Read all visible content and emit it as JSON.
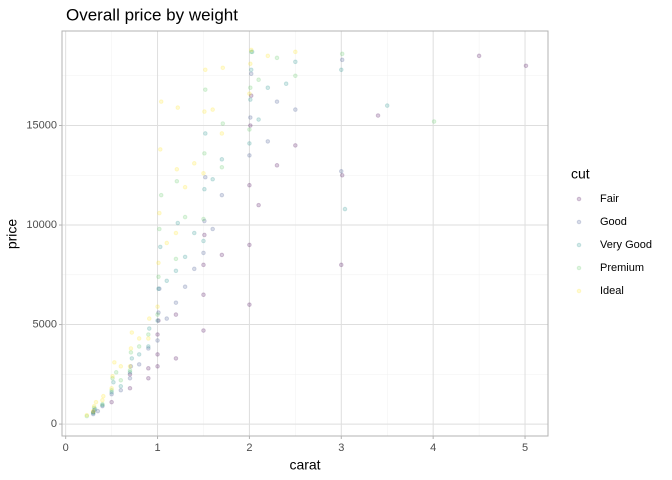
{
  "chart_data": {
    "type": "scatter",
    "title": "Overall price by weight",
    "x_label": "carat",
    "y_label": "price",
    "legend_title": "cut",
    "xlim": [
      -0.04,
      5.25
    ],
    "ylim": [
      -599,
      19748
    ],
    "xticks": [
      0,
      1,
      2,
      3,
      4,
      5
    ],
    "yticks": [
      0,
      5000,
      10000,
      15000
    ],
    "x_minor_ticks": [
      0.5,
      1.5,
      2.5,
      3.5,
      4.5
    ],
    "y_minor_ticks": [
      2500,
      7500,
      12500,
      17500
    ],
    "grid": true,
    "legend_position": "right",
    "point_opacity": 0.2,
    "series": [
      {
        "name": "Fair",
        "color": "#440154",
        "x": [
          0.3,
          0.5,
          0.7,
          0.9,
          1.0,
          1.0,
          1.01,
          1.2,
          1.5,
          1.5,
          1.51,
          1.7,
          2.0,
          2.0,
          2.01,
          2.02,
          2.1,
          2.3,
          2.5,
          3.0,
          3.01,
          3.4,
          4.5,
          5.01,
          0.7,
          1.0,
          1.5,
          2.0,
          1.2,
          0.9
        ],
        "values": [
          600,
          1100,
          1800,
          2300,
          3500,
          4500,
          5200,
          5500,
          6500,
          8000,
          9500,
          8500,
          9000,
          12000,
          15000,
          16500,
          11000,
          13000,
          14000,
          8000,
          12500,
          15500,
          18500,
          18000,
          2500,
          2900,
          4700,
          6000,
          3300,
          2800
        ]
      },
      {
        "name": "Good",
        "color": "#3B528B",
        "x": [
          0.3,
          0.31,
          0.4,
          0.5,
          0.7,
          0.71,
          0.9,
          1.0,
          1.01,
          1.02,
          1.1,
          1.2,
          1.5,
          1.51,
          1.52,
          1.7,
          2.0,
          2.01,
          2.02,
          2.2,
          2.5,
          3.0,
          3.01,
          0.6,
          0.8,
          1.3,
          1.4,
          1.6,
          2.3,
          0.35
        ],
        "values": [
          500,
          700,
          900,
          1500,
          2300,
          2900,
          3800,
          4200,
          5600,
          6800,
          5300,
          6100,
          8600,
          10200,
          12400,
          11500,
          13500,
          15400,
          17600,
          14200,
          15800,
          12700,
          18300,
          1700,
          3000,
          6900,
          7800,
          9800,
          16200,
          650
        ]
      },
      {
        "name": "Very Good",
        "color": "#21908C",
        "x": [
          0.3,
          0.32,
          0.4,
          0.5,
          0.52,
          0.7,
          0.72,
          0.9,
          0.91,
          1.0,
          1.01,
          1.03,
          1.1,
          1.2,
          1.22,
          1.5,
          1.51,
          1.52,
          1.6,
          1.7,
          2.0,
          2.01,
          2.02,
          2.03,
          2.1,
          2.2,
          2.4,
          2.5,
          3.0,
          3.04,
          3.5,
          0.6,
          0.8,
          1.3,
          1.4
        ],
        "values": [
          550,
          750,
          950,
          1600,
          2100,
          2600,
          3300,
          3900,
          4800,
          5200,
          6800,
          8900,
          7200,
          7700,
          10100,
          9200,
          11800,
          14600,
          12300,
          13300,
          14100,
          16300,
          17800,
          18700,
          15300,
          16900,
          17100,
          18200,
          17800,
          10800,
          16000,
          1900,
          3500,
          8400,
          9600
        ]
      },
      {
        "name": "Premium",
        "color": "#5DC863",
        "x": [
          0.3,
          0.31,
          0.4,
          0.5,
          0.51,
          0.7,
          0.71,
          0.9,
          1.0,
          1.01,
          1.02,
          1.04,
          1.2,
          1.21,
          1.5,
          1.51,
          1.52,
          1.7,
          1.71,
          2.0,
          2.01,
          2.02,
          2.1,
          2.3,
          2.5,
          3.01,
          4.01,
          0.6,
          0.8,
          1.3,
          0.23,
          0.55
        ],
        "values": [
          600,
          820,
          1000,
          1700,
          2300,
          2700,
          3600,
          4500,
          5500,
          7400,
          9800,
          11500,
          8300,
          12200,
          10300,
          13600,
          16800,
          12900,
          15100,
          14800,
          16900,
          18700,
          17300,
          18400,
          17500,
          18600,
          15200,
          2200,
          3900,
          10400,
          400,
          2600
        ]
      },
      {
        "name": "Ideal",
        "color": "#FDE725",
        "x": [
          0.23,
          0.3,
          0.31,
          0.33,
          0.4,
          0.41,
          0.5,
          0.51,
          0.53,
          0.7,
          0.71,
          0.72,
          0.9,
          0.91,
          1.0,
          1.01,
          1.02,
          1.03,
          1.04,
          1.1,
          1.2,
          1.21,
          1.22,
          1.5,
          1.51,
          1.52,
          1.7,
          1.71,
          2.0,
          2.01,
          2.02,
          2.2,
          2.5,
          0.6,
          0.8,
          1.3,
          1.4,
          1.6
        ],
        "values": [
          450,
          650,
          900,
          1100,
          1200,
          1400,
          1800,
          2400,
          3100,
          2900,
          3800,
          4600,
          4300,
          5300,
          5900,
          8100,
          10600,
          13800,
          16200,
          9100,
          9600,
          12800,
          15900,
          12600,
          15700,
          17800,
          14600,
          17900,
          16600,
          18100,
          18800,
          18500,
          18700,
          2900,
          4300,
          11900,
          13100,
          15800
        ]
      }
    ]
  }
}
